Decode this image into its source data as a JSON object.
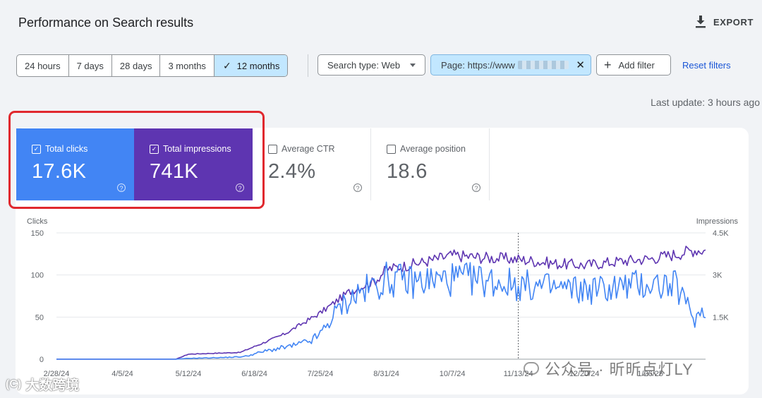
{
  "header": {
    "title": "Performance on Search results",
    "export_label": "EXPORT"
  },
  "date_ranges": [
    {
      "label": "24 hours",
      "selected": false
    },
    {
      "label": "7 days",
      "selected": false
    },
    {
      "label": "28 days",
      "selected": false
    },
    {
      "label": "3 months",
      "selected": false
    },
    {
      "label": "12 months",
      "selected": true
    }
  ],
  "filters": {
    "search_type_label": "Search type: Web",
    "page_filter_label": "Page: https://www",
    "add_filter_label": "Add filter",
    "reset_label": "Reset filters"
  },
  "last_update": "Last update: 3 hours ago",
  "metrics": [
    {
      "label": "Total clicks",
      "value": "17.6K",
      "checked": true,
      "color": "#4285f4"
    },
    {
      "label": "Total impressions",
      "value": "741K",
      "checked": true,
      "color": "#5e35b1"
    },
    {
      "label": "Average CTR",
      "value": "2.4%",
      "checked": false
    },
    {
      "label": "Average position",
      "value": "18.6",
      "checked": false
    }
  ],
  "colors": {
    "clicks": "#4285f4",
    "impressions": "#5e35b1",
    "highlight": "#e0282e",
    "selected": "#c2e7ff"
  },
  "chart_data": {
    "type": "line",
    "left_axis_label": "Clicks",
    "right_axis_label": "Impressions",
    "left_ylim": [
      0,
      150
    ],
    "left_ticks": [
      "150",
      "100",
      "50",
      "0"
    ],
    "right_ylim": [
      0,
      4500
    ],
    "right_ticks": [
      "4.5K",
      "3K",
      "1.5K"
    ],
    "x_ticks": [
      "2/28/24",
      "4/5/24",
      "5/12/24",
      "6/18/24",
      "7/25/24",
      "8/31/24",
      "10/7/24",
      "11/13/24",
      "12/20/24",
      "1/26/25"
    ],
    "marker_label": "11/13/24",
    "series": [
      {
        "name": "Clicks",
        "points": [
          [
            "2/28/24",
            0
          ],
          [
            "5/5/24",
            0
          ],
          [
            "5/12/24",
            1
          ],
          [
            "6/1/24",
            2
          ],
          [
            "6/12/24",
            3
          ],
          [
            "6/25/24",
            10
          ],
          [
            "7/10/24",
            16
          ],
          [
            "7/20/24",
            22
          ],
          [
            "7/25/24",
            30
          ],
          [
            "8/5/24",
            62
          ],
          [
            "8/15/24",
            78
          ],
          [
            "8/25/24",
            88
          ],
          [
            "8/31/24",
            95
          ],
          [
            "9/15/24",
            92
          ],
          [
            "10/7/24",
            95
          ],
          [
            "10/25/24",
            94
          ],
          [
            "11/13/24",
            88
          ],
          [
            "12/5/24",
            84
          ],
          [
            "12/20/24",
            82
          ],
          [
            "1/10/25",
            86
          ],
          [
            "1/26/25",
            90
          ],
          [
            "2/10/25",
            86
          ],
          [
            "2/16/25",
            62
          ],
          [
            "2/20/25",
            48
          ],
          [
            "2/26/25",
            62
          ]
        ]
      },
      {
        "name": "Impressions",
        "points": [
          [
            "2/28/24",
            0
          ],
          [
            "5/5/24",
            0
          ],
          [
            "5/12/24",
            180
          ],
          [
            "6/10/24",
            240
          ],
          [
            "6/18/24",
            450
          ],
          [
            "7/5/24",
            900
          ],
          [
            "7/25/24",
            1650
          ],
          [
            "8/10/24",
            2400
          ],
          [
            "8/25/24",
            2800
          ],
          [
            "8/31/24",
            3200
          ],
          [
            "9/20/24",
            3450
          ],
          [
            "10/7/24",
            3700
          ],
          [
            "10/25/24",
            3620
          ],
          [
            "11/13/24",
            3560
          ],
          [
            "12/5/24",
            3400
          ],
          [
            "12/20/24",
            3350
          ],
          [
            "1/10/25",
            3500
          ],
          [
            "1/26/25",
            3580
          ],
          [
            "2/10/25",
            3750
          ],
          [
            "2/20/25",
            3900
          ],
          [
            "2/26/25",
            3880
          ]
        ]
      }
    ]
  },
  "watermarks": {
    "channel": "公众号 · 昕昕点灯LY",
    "brand": "大数跨境",
    "brand_logo": "(C)"
  }
}
